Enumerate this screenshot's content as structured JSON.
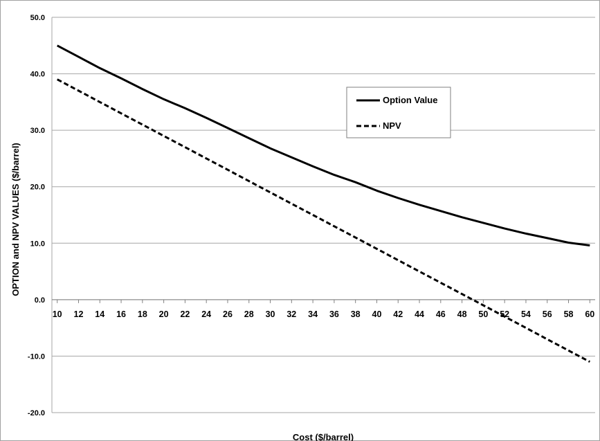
{
  "chart_data": {
    "type": "line",
    "title": "",
    "xlabel": "Cost ($/barrel)",
    "ylabel": "OPTION and NPV VALUES ($/barrel)",
    "x": [
      10,
      12,
      14,
      16,
      18,
      20,
      22,
      24,
      26,
      28,
      30,
      32,
      34,
      36,
      38,
      40,
      42,
      44,
      46,
      48,
      50,
      52,
      54,
      56,
      58,
      60
    ],
    "x_tick_labels": [
      "10",
      "12",
      "14",
      "16",
      "18",
      "20",
      "22",
      "24",
      "26",
      "28",
      "30",
      "32",
      "34",
      "36",
      "38",
      "40",
      "42",
      "44",
      "46",
      "48",
      "50",
      "52",
      "54",
      "56",
      "58",
      "60"
    ],
    "y_tick_labels": [
      "50.0",
      "40.0",
      "30.0",
      "20.0",
      "10.0",
      "0.0",
      "-10.0",
      "-20.0"
    ],
    "y_ticks": [
      50,
      40,
      30,
      20,
      10,
      0,
      -10,
      -20
    ],
    "xlim": [
      9.5,
      60.5
    ],
    "ylim": [
      -20,
      50
    ],
    "grid": true,
    "legend_position": "top-right",
    "series": [
      {
        "name": "Option Value",
        "style": "solid",
        "color": "#000000",
        "values": [
          45.0,
          43.0,
          41.0,
          39.2,
          37.3,
          35.5,
          33.9,
          32.2,
          30.4,
          28.6,
          26.8,
          25.2,
          23.6,
          22.1,
          20.8,
          19.3,
          18.0,
          16.8,
          15.7,
          14.6,
          13.6,
          12.6,
          11.7,
          10.9,
          10.1,
          9.6
        ]
      },
      {
        "name": "NPV",
        "style": "dashed",
        "color": "#000000",
        "values": [
          39.0,
          37.0,
          35.0,
          33.0,
          31.0,
          29.0,
          27.0,
          25.0,
          23.0,
          21.0,
          19.0,
          17.0,
          15.0,
          13.0,
          11.0,
          9.0,
          7.0,
          5.0,
          3.0,
          1.0,
          -1.0,
          -3.0,
          -5.0,
          -7.0,
          -9.0,
          -11.0
        ]
      }
    ]
  }
}
